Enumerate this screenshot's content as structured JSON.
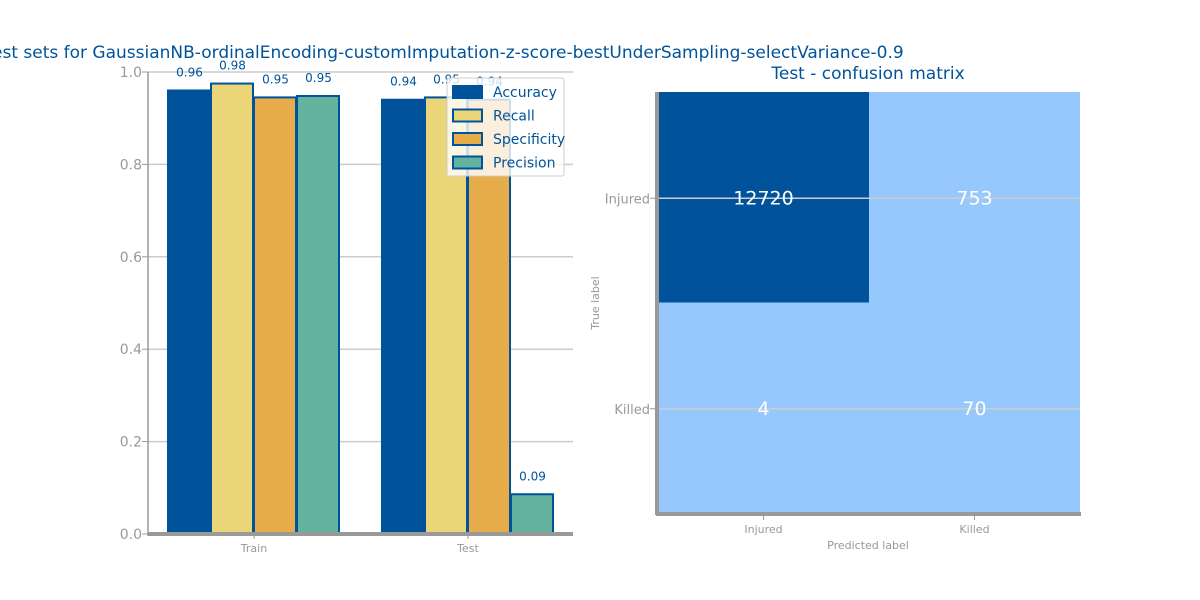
{
  "colors": {
    "accuracy": "#00539a",
    "recall": "#ebd579",
    "specificity": "#e8ad4b",
    "precision": "#64b39f",
    "title": "#00539a",
    "axis": "#999999",
    "grid": "#cccccc",
    "cm_high": "#00539a",
    "cm_low": "#97c8fd"
  },
  "chart_data": [
    {
      "type": "bar",
      "title": "est sets for GaussianNB-ordinalEncoding-customImputation-z-score-bestUnderSampling-selectVariance-0.9",
      "categories": [
        "Train",
        "Test"
      ],
      "series": [
        {
          "name": "Accuracy",
          "values": [
            0.96,
            0.94
          ],
          "labels": [
            "0.96",
            "0.94"
          ]
        },
        {
          "name": "Recall",
          "values": [
            0.975,
            0.945
          ],
          "labels": [
            "0.98",
            "0.95"
          ]
        },
        {
          "name": "Specificity",
          "values": [
            0.945,
            0.94
          ],
          "labels": [
            "0.95",
            "0.94"
          ]
        },
        {
          "name": "Precision",
          "values": [
            0.948,
            0.086
          ],
          "labels": [
            "0.95",
            "0.09"
          ]
        }
      ],
      "ylim": [
        0,
        1.0
      ],
      "yticks": [
        "0.0",
        "0.2",
        "0.4",
        "0.6",
        "0.8",
        "1.0"
      ],
      "grid": "horizontal",
      "legend": "top-right"
    },
    {
      "type": "heatmap",
      "title": "Test - confusion matrix",
      "xlabel": "Predicted label",
      "ylabel": "True label",
      "x_labels": [
        "Injured",
        "Killed"
      ],
      "y_labels": [
        "Injured",
        "Killed"
      ],
      "values": [
        [
          12720,
          753
        ],
        [
          4,
          70
        ]
      ]
    }
  ]
}
